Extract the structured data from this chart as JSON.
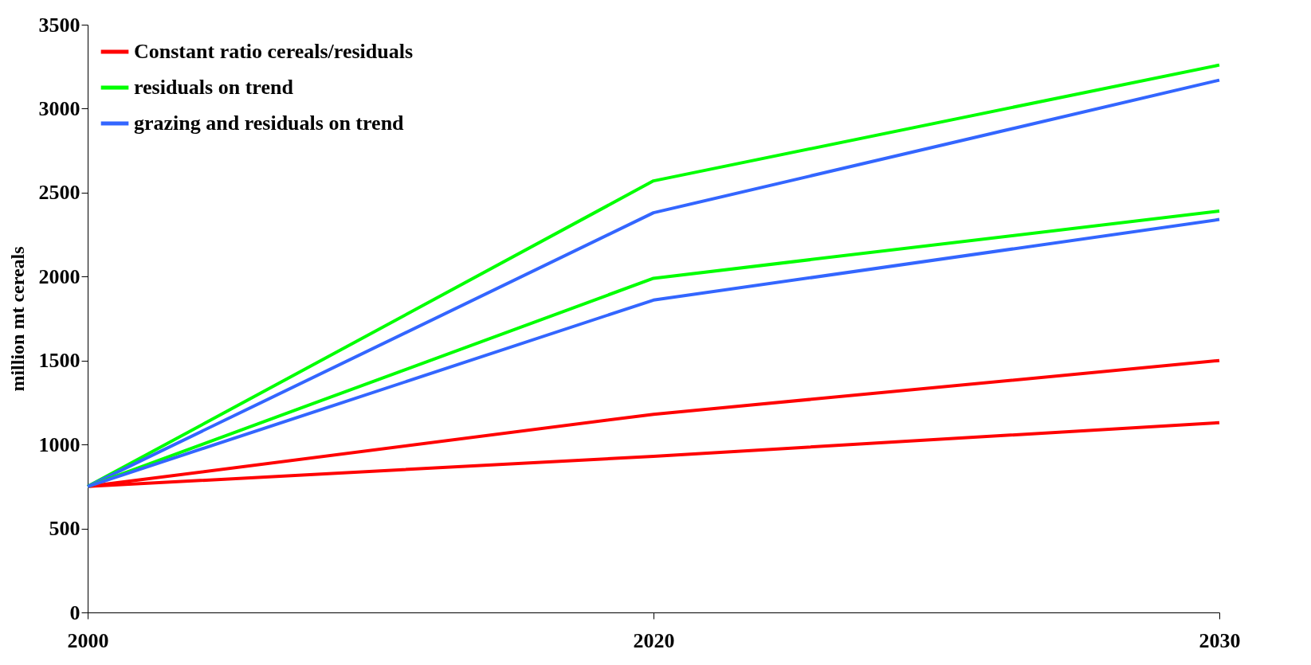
{
  "chart_data": {
    "type": "line",
    "ylabel": "million mt cereals",
    "categories": [
      "2000",
      "2020",
      "2030"
    ],
    "ylim": [
      0,
      3500
    ],
    "yticks": [
      0,
      500,
      1000,
      1500,
      2000,
      2500,
      3000,
      3500
    ],
    "grid": false,
    "legend": "top left",
    "marker": "none",
    "line_style": "solid",
    "series": [
      {
        "name": "Constant ratio cereals/residuals",
        "color": "#ff0000",
        "values": [
          750,
          1180,
          1500
        ]
      },
      {
        "name": "residuals on trend",
        "color": "#00ff00",
        "values": [
          750,
          2570,
          3260
        ]
      },
      {
        "name": "grazing and residuals on trend",
        "color": "#3366ff",
        "values": [
          750,
          2380,
          3170
        ]
      },
      {
        "color": "#ff0000",
        "values": [
          750,
          930,
          1130
        ]
      },
      {
        "color": "#00ff00",
        "values": [
          750,
          1990,
          2390
        ]
      },
      {
        "color": "#3366ff",
        "values": [
          750,
          1860,
          2340
        ]
      }
    ]
  }
}
